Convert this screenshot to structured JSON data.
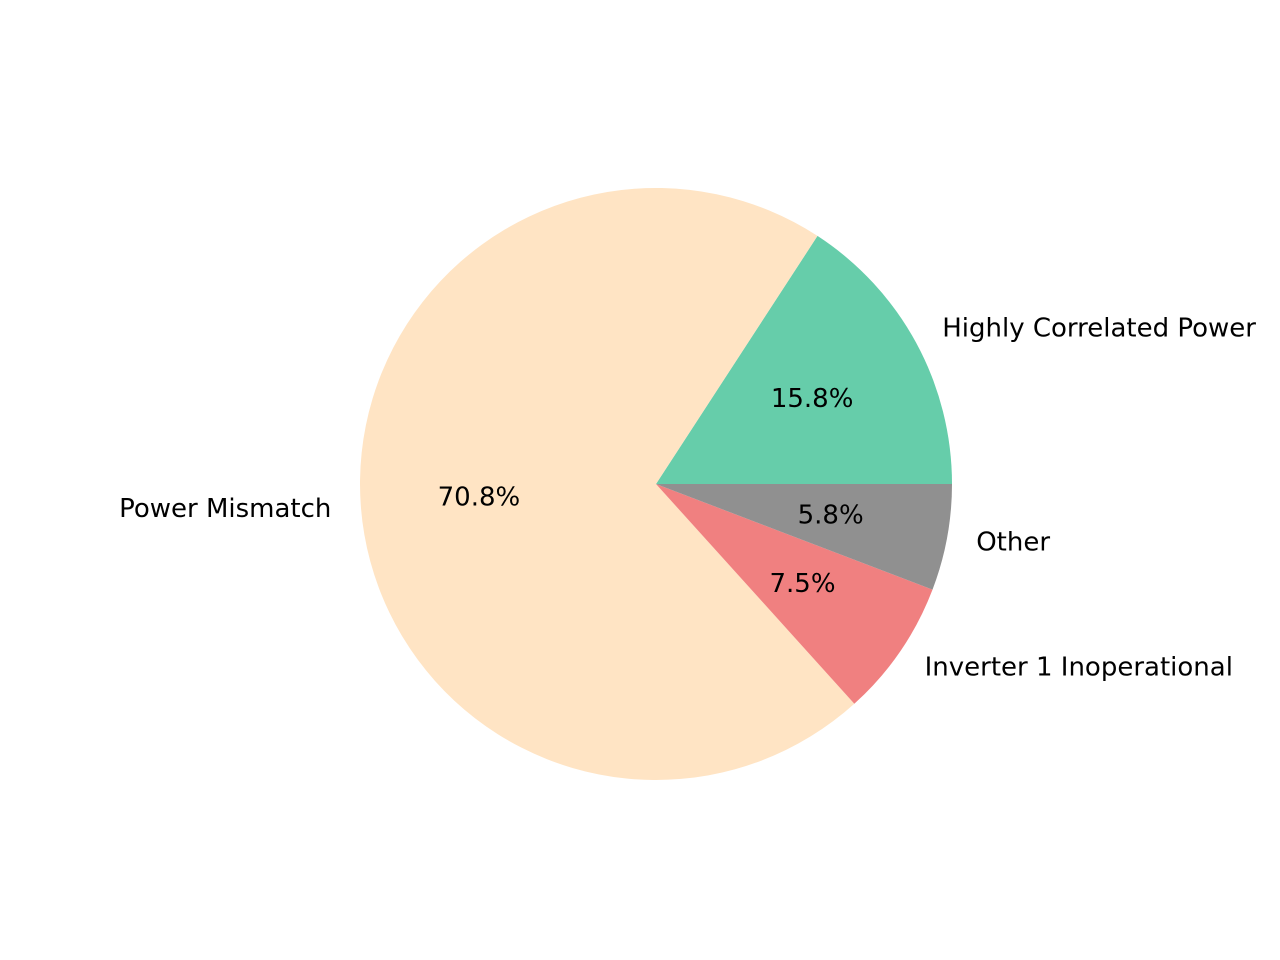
{
  "chart_data": {
    "type": "pie",
    "title": "",
    "slices": [
      {
        "label": "Highly Correlated Power",
        "value": 15.8,
        "pct_label": "15.8%",
        "color": "#66cdaa"
      },
      {
        "label": "Power Mismatch",
        "value": 70.8,
        "pct_label": "70.8%",
        "color": "#ffe4c4"
      },
      {
        "label": "Inverter 1 Inoperational",
        "value": 7.5,
        "pct_label": "7.5%",
        "color": "#f08080"
      },
      {
        "label": "Other",
        "value": 5.8,
        "pct_label": "5.8%",
        "color": "#909090"
      }
    ],
    "start_angle_deg": 0,
    "direction": "counterclockwise",
    "legend": "none"
  }
}
